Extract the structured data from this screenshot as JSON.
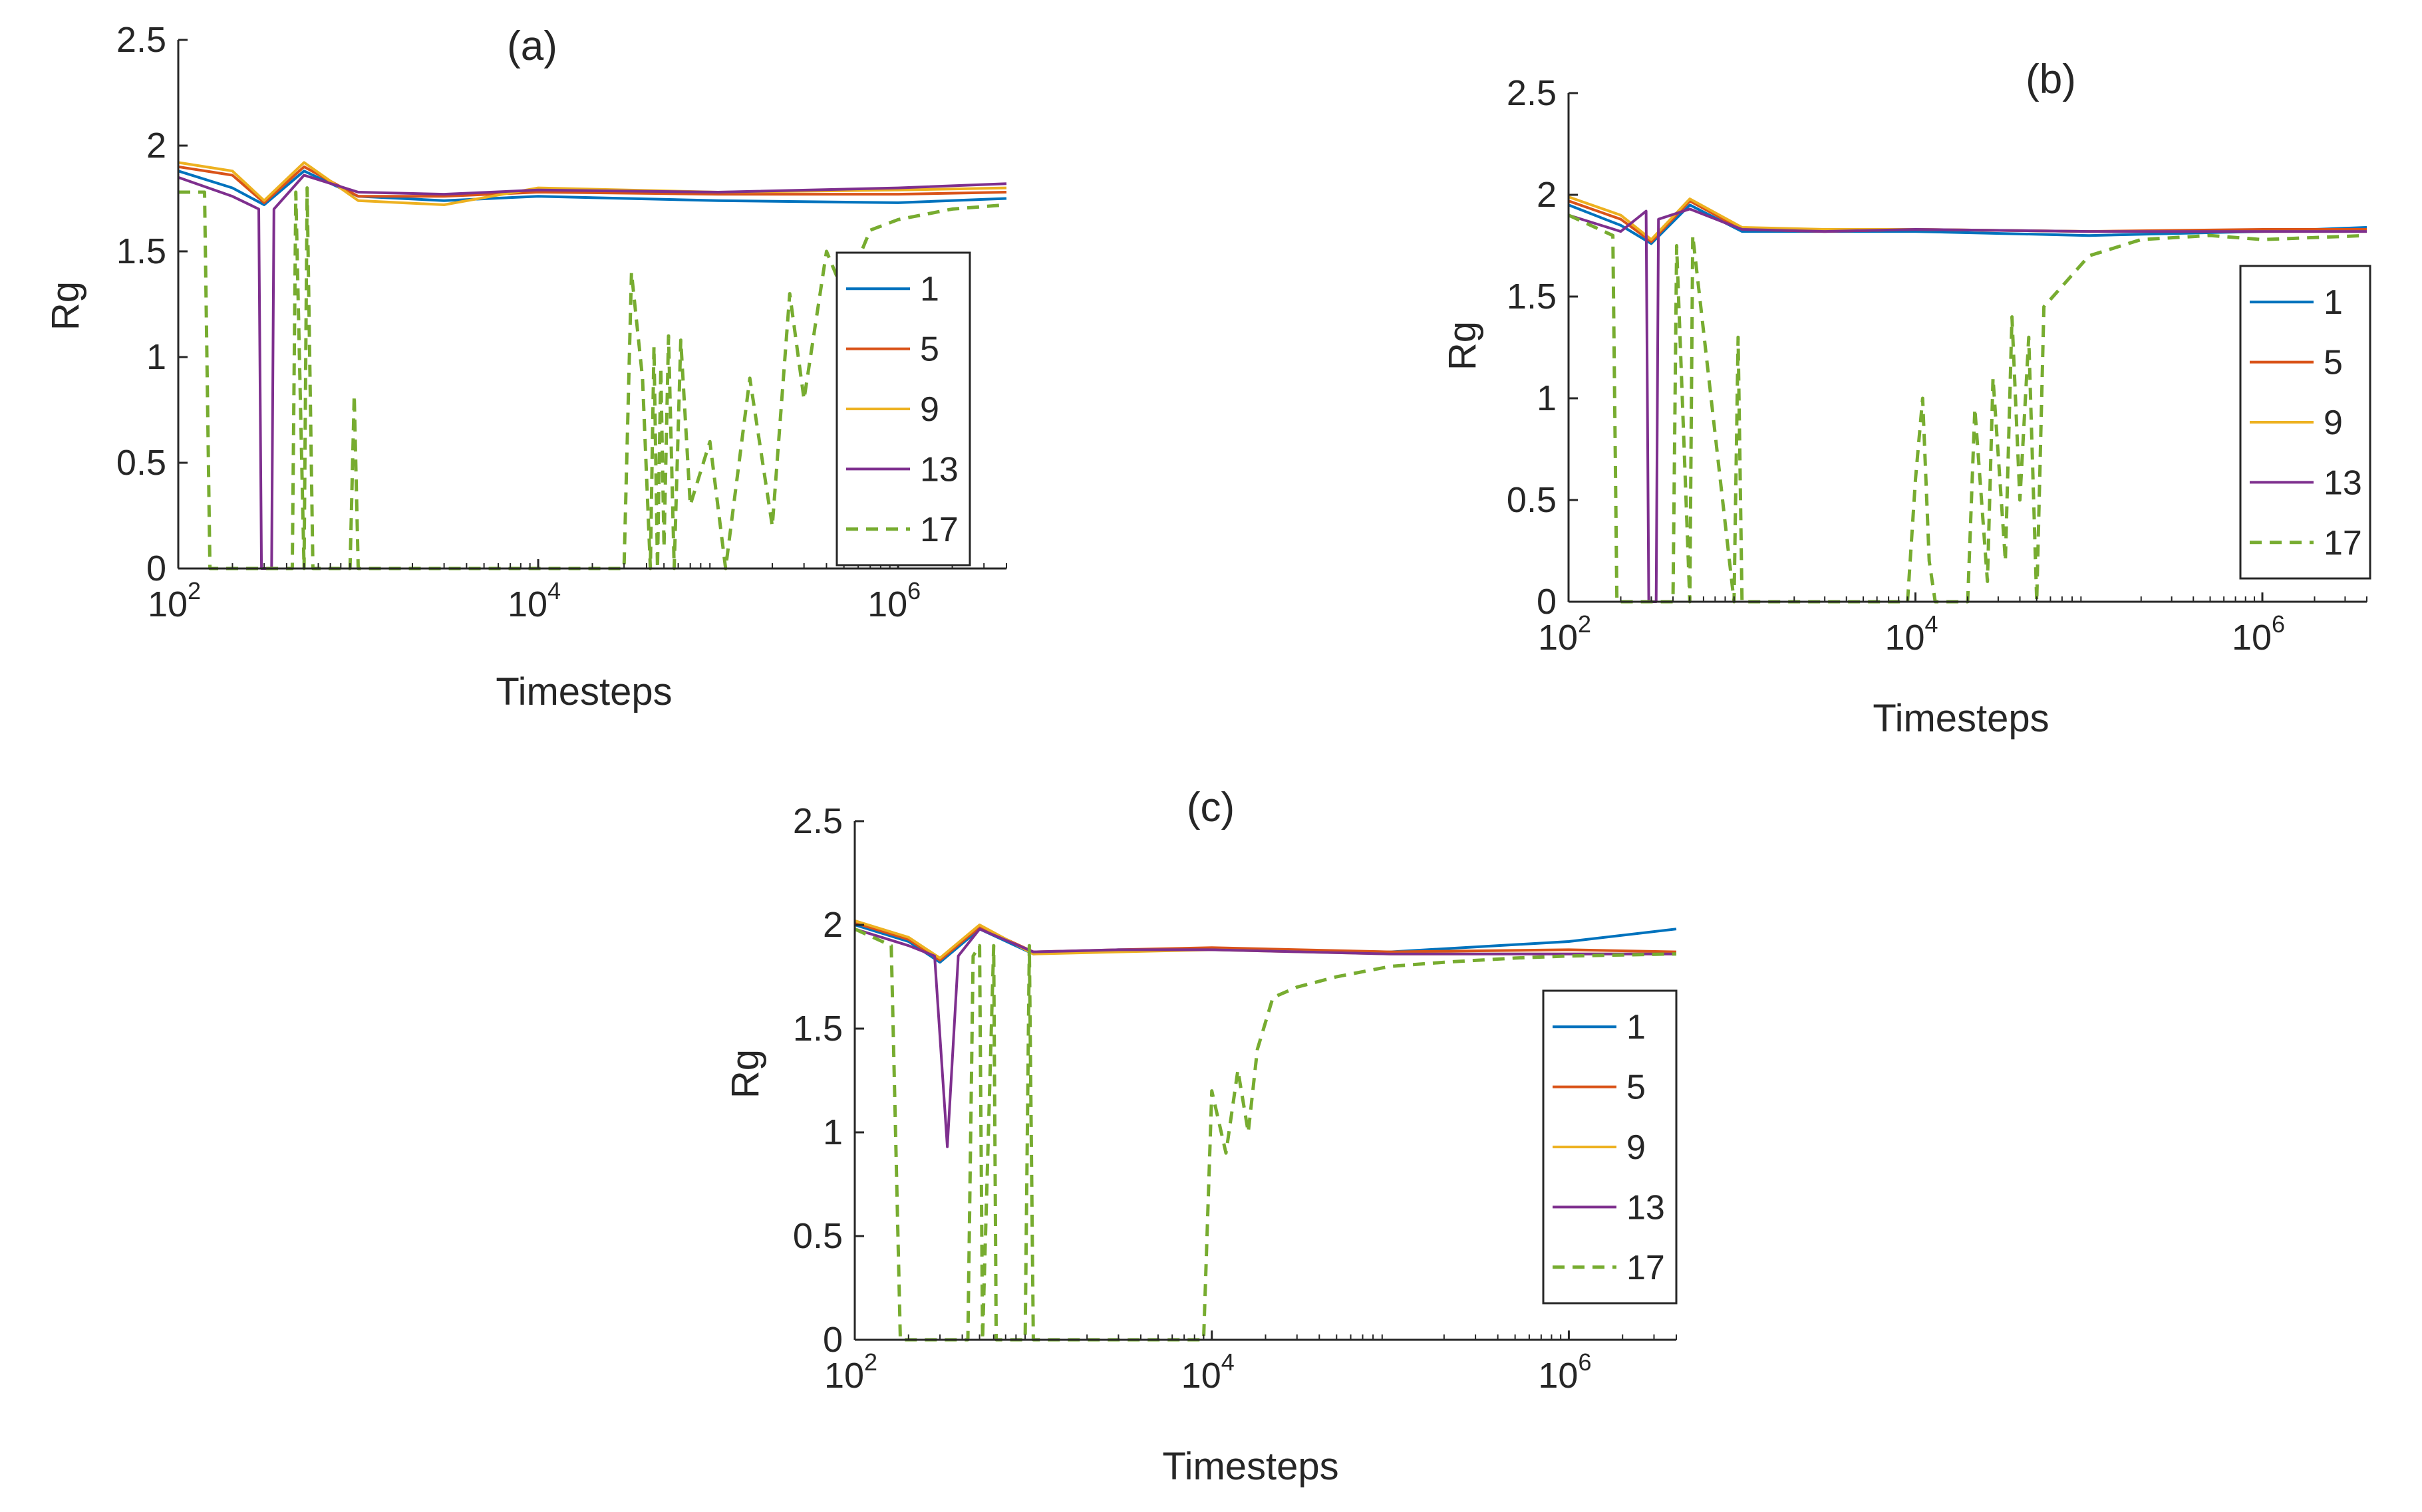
{
  "chart_data": [
    {
      "type": "line",
      "panel": "a",
      "title": "(a)",
      "xlabel": "Timesteps",
      "ylabel": "Rg",
      "xscale": "log",
      "xlim": [
        100,
        4000000
      ],
      "ylim": [
        0,
        2.5
      ],
      "yticks": [
        "0",
        "0.5",
        "1",
        "1.5",
        "2",
        "2.5"
      ],
      "xticks": [
        {
          "base": "10",
          "exp": "2"
        },
        {
          "base": "10",
          "exp": "4"
        },
        {
          "base": "10",
          "exp": "6"
        }
      ],
      "legend_position": "bottom-right",
      "series": [
        {
          "name": "1",
          "color": "#0072BD",
          "dash": false,
          "x": [
            100,
            200,
            300,
            500,
            1000,
            3000,
            10000,
            100000,
            1000000,
            4000000
          ],
          "y": [
            1.88,
            1.8,
            1.72,
            1.88,
            1.76,
            1.74,
            1.76,
            1.74,
            1.73,
            1.75
          ]
        },
        {
          "name": "5",
          "color": "#D95319",
          "dash": false,
          "x": [
            100,
            200,
            300,
            500,
            1000,
            3000,
            10000,
            100000,
            1000000,
            4000000
          ],
          "y": [
            1.9,
            1.86,
            1.73,
            1.9,
            1.76,
            1.76,
            1.78,
            1.77,
            1.77,
            1.78
          ]
        },
        {
          "name": "9",
          "color": "#EDB120",
          "dash": false,
          "x": [
            100,
            200,
            300,
            500,
            1000,
            3000,
            10000,
            100000,
            1000000,
            4000000
          ],
          "y": [
            1.92,
            1.88,
            1.74,
            1.92,
            1.74,
            1.72,
            1.8,
            1.78,
            1.79,
            1.8
          ]
        },
        {
          "name": "13",
          "color": "#7E2F8E",
          "dash": false,
          "x": [
            100,
            200,
            280,
            290,
            330,
            340,
            500,
            1000,
            3000,
            10000,
            100000,
            1000000,
            4000000
          ],
          "y": [
            1.85,
            1.76,
            1.7,
            0,
            0,
            1.7,
            1.86,
            1.78,
            1.77,
            1.79,
            1.78,
            1.8,
            1.82
          ]
        },
        {
          "name": "17",
          "color": "#77AC30",
          "dash": true,
          "x": [
            100,
            140,
            150,
            430,
            450,
            500,
            520,
            560,
            900,
            950,
            1000,
            30000,
            33000,
            38000,
            42000,
            44000,
            46000,
            48000,
            50000,
            53000,
            57000,
            62000,
            70000,
            90000,
            110000,
            150000,
            200000,
            250000,
            300000,
            400000,
            500000,
            700000,
            1000000,
            2000000,
            4000000
          ],
          "y": [
            1.78,
            1.78,
            0,
            0,
            1.78,
            0,
            1.8,
            0,
            0,
            0.82,
            0,
            0,
            1.4,
            0.9,
            0,
            1.05,
            0,
            0.95,
            0.1,
            1.1,
            0,
            1.08,
            0.3,
            0.6,
            0,
            0.9,
            0.2,
            1.3,
            0.8,
            1.5,
            1.3,
            1.6,
            1.65,
            1.7,
            1.72
          ]
        }
      ]
    },
    {
      "type": "line",
      "panel": "b",
      "title": "(b)",
      "xlabel": "Timesteps",
      "ylabel": "Rg",
      "xscale": "log",
      "xlim": [
        100,
        4000000
      ],
      "ylim": [
        0,
        2.5
      ],
      "yticks": [
        "0",
        "0.5",
        "1",
        "1.5",
        "2",
        "2.5"
      ],
      "xticks": [
        {
          "base": "10",
          "exp": "2"
        },
        {
          "base": "10",
          "exp": "4"
        },
        {
          "base": "10",
          "exp": "6"
        }
      ],
      "legend_position": "right",
      "series": [
        {
          "name": "1",
          "color": "#0072BD",
          "dash": false,
          "x": [
            100,
            200,
            300,
            500,
            1000,
            3000,
            10000,
            100000,
            1000000,
            4000000
          ],
          "y": [
            1.95,
            1.85,
            1.76,
            1.95,
            1.82,
            1.82,
            1.82,
            1.8,
            1.82,
            1.84
          ]
        },
        {
          "name": "5",
          "color": "#D95319",
          "dash": false,
          "x": [
            100,
            200,
            300,
            500,
            1000,
            3000,
            10000,
            100000,
            1000000,
            4000000
          ],
          "y": [
            1.97,
            1.88,
            1.77,
            1.97,
            1.83,
            1.82,
            1.83,
            1.82,
            1.83,
            1.83
          ]
        },
        {
          "name": "9",
          "color": "#EDB120",
          "dash": false,
          "x": [
            100,
            200,
            300,
            500,
            1000,
            3000,
            10000,
            100000,
            1000000,
            4000000
          ],
          "y": [
            1.99,
            1.9,
            1.78,
            1.98,
            1.84,
            1.83,
            1.83,
            1.82,
            1.82,
            1.82
          ]
        },
        {
          "name": "13",
          "color": "#7E2F8E",
          "dash": false,
          "x": [
            100,
            200,
            280,
            290,
            320,
            330,
            500,
            1000,
            3000,
            10000,
            100000,
            1000000,
            4000000
          ],
          "y": [
            1.9,
            1.82,
            1.92,
            0,
            0,
            1.88,
            1.93,
            1.83,
            1.82,
            1.83,
            1.82,
            1.82,
            1.82
          ]
        },
        {
          "name": "17",
          "color": "#77AC30",
          "dash": true,
          "x": [
            100,
            180,
            190,
            400,
            420,
            500,
            520,
            900,
            950,
            1000,
            9000,
            10000,
            11000,
            12000,
            13000,
            20000,
            22000,
            26000,
            28000,
            33000,
            36000,
            40000,
            45000,
            50000,
            55000,
            70000,
            100000,
            200000,
            500000,
            1000000,
            4000000
          ],
          "y": [
            1.9,
            1.8,
            0,
            0,
            1.75,
            0,
            1.8,
            0,
            1.3,
            0,
            0,
            0.6,
            1.0,
            0.2,
            0,
            0,
            0.95,
            0.1,
            1.1,
            0.2,
            1.4,
            0.5,
            1.3,
            0,
            1.45,
            1.55,
            1.7,
            1.78,
            1.8,
            1.78,
            1.8
          ]
        }
      ]
    },
    {
      "type": "line",
      "panel": "c",
      "title": "(c)",
      "xlabel": "Timesteps",
      "ylabel": "Rg",
      "xscale": "log",
      "xlim": [
        100,
        4000000
      ],
      "ylim": [
        0,
        2.5
      ],
      "yticks": [
        "0",
        "0.5",
        "1",
        "1.5",
        "2",
        "2.5"
      ],
      "xticks": [
        {
          "base": "10",
          "exp": "2"
        },
        {
          "base": "10",
          "exp": "4"
        },
        {
          "base": "10",
          "exp": "6"
        }
      ],
      "legend_position": "right",
      "series": [
        {
          "name": "1",
          "color": "#0072BD",
          "dash": false,
          "x": [
            100,
            200,
            300,
            500,
            1000,
            3000,
            10000,
            100000,
            1000000,
            4000000
          ],
          "y": [
            2.0,
            1.92,
            1.82,
            1.98,
            1.86,
            1.88,
            1.88,
            1.87,
            1.92,
            1.98
          ]
        },
        {
          "name": "5",
          "color": "#D95319",
          "dash": false,
          "x": [
            100,
            200,
            300,
            500,
            1000,
            3000,
            10000,
            100000,
            1000000,
            4000000
          ],
          "y": [
            2.01,
            1.93,
            1.83,
            1.99,
            1.87,
            1.88,
            1.89,
            1.87,
            1.88,
            1.87
          ]
        },
        {
          "name": "9",
          "color": "#EDB120",
          "dash": false,
          "x": [
            100,
            200,
            300,
            500,
            1000,
            3000,
            10000,
            100000,
            1000000,
            4000000
          ],
          "y": [
            2.02,
            1.94,
            1.84,
            2.0,
            1.86,
            1.87,
            1.88,
            1.86,
            1.86,
            1.86
          ]
        },
        {
          "name": "13",
          "color": "#7E2F8E",
          "dash": false,
          "x": [
            100,
            200,
            280,
            330,
            380,
            500,
            1000,
            3000,
            10000,
            100000,
            1000000,
            4000000
          ],
          "y": [
            1.98,
            1.9,
            1.85,
            0.93,
            1.85,
            1.98,
            1.87,
            1.88,
            1.88,
            1.86,
            1.86,
            1.86
          ]
        },
        {
          "name": "17",
          "color": "#77AC30",
          "dash": true,
          "x": [
            100,
            160,
            180,
            200,
            430,
            460,
            500,
            520,
            600,
            620,
            900,
            950,
            1000,
            8000,
            9000,
            10000,
            12000,
            14000,
            16000,
            18000,
            22000,
            30000,
            50000,
            100000,
            200000,
            500000,
            1000000,
            4000000
          ],
          "y": [
            1.98,
            1.9,
            0,
            0,
            0,
            1.85,
            1.9,
            0,
            1.9,
            0,
            0,
            1.9,
            0,
            0,
            0,
            1.2,
            0.9,
            1.3,
            1.0,
            1.4,
            1.65,
            1.7,
            1.75,
            1.8,
            1.82,
            1.84,
            1.85,
            1.86
          ]
        }
      ]
    }
  ]
}
